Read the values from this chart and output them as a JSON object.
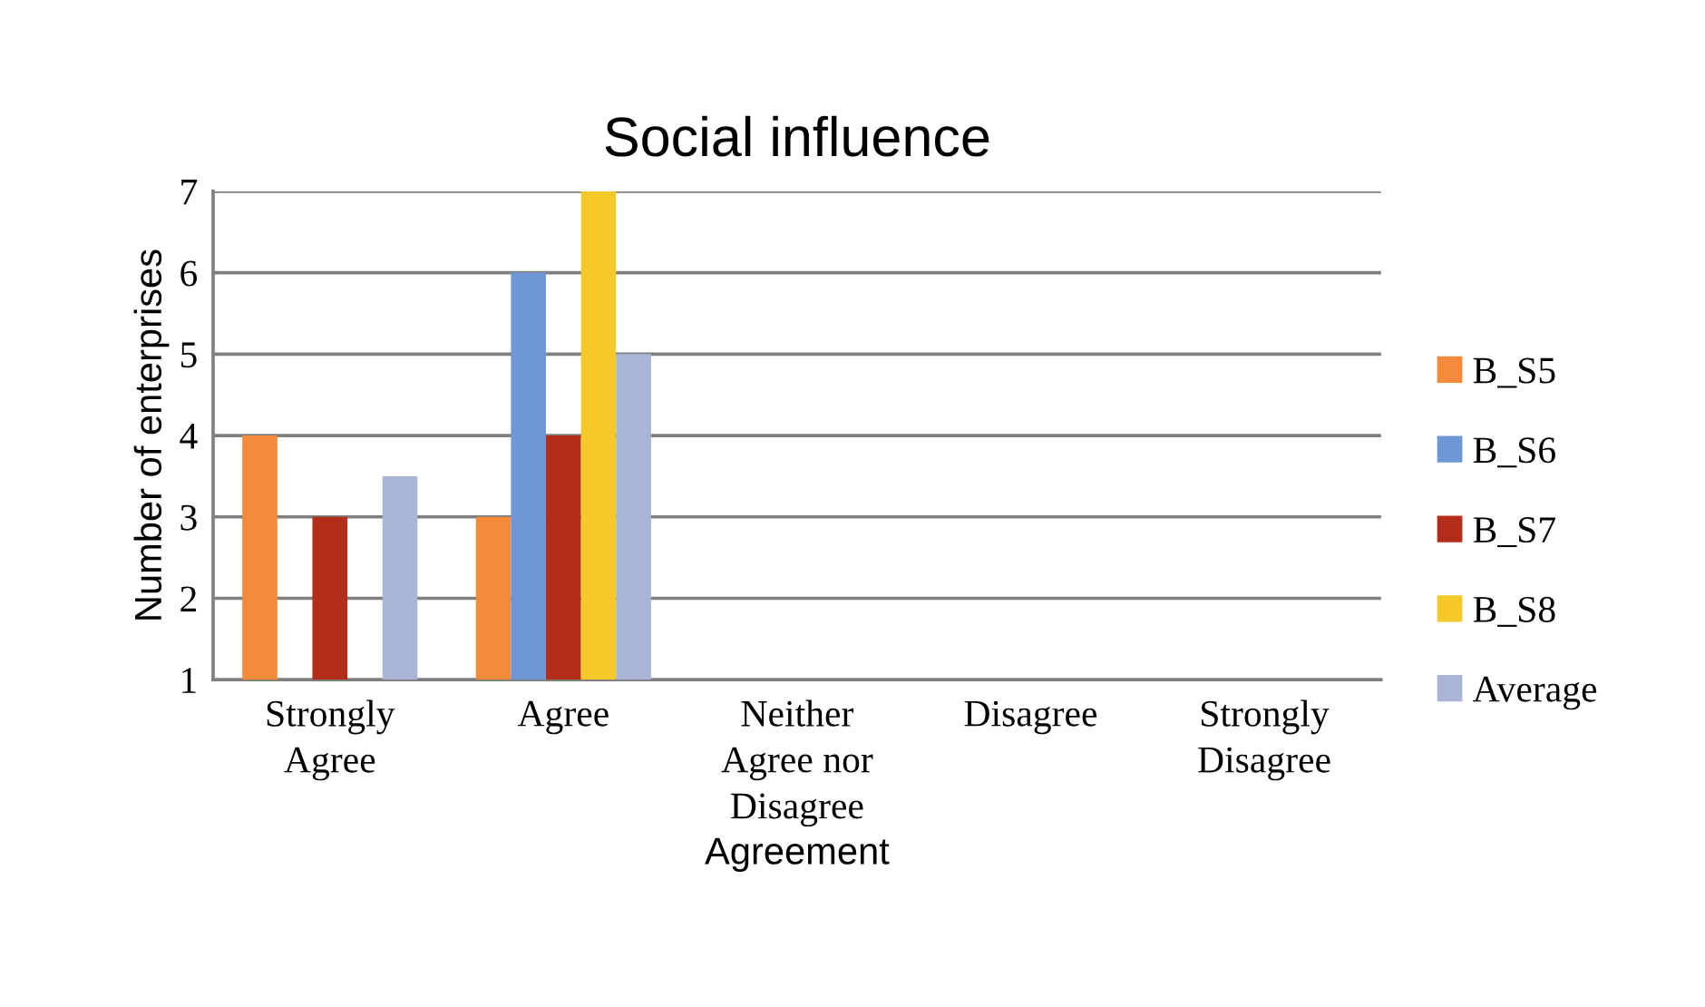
{
  "chart_data": {
    "type": "bar",
    "title": "Social influence",
    "xlabel": "Agreement",
    "ylabel": "Number of enterprises",
    "categories": [
      "Strongly\nAgree",
      "Agree",
      "Neither\nAgree nor\nDisagree",
      "Disagree",
      "Strongly\nDisagree"
    ],
    "series": [
      {
        "name": "B_S5",
        "color": "#f58a3a",
        "values": [
          4,
          3,
          null,
          null,
          null
        ]
      },
      {
        "name": "B_S6",
        "color": "#6f97d6",
        "values": [
          null,
          6,
          null,
          null,
          null
        ]
      },
      {
        "name": "B_S7",
        "color": "#b22d1a",
        "values": [
          3,
          4,
          null,
          null,
          null
        ]
      },
      {
        "name": "B_S8",
        "color": "#f5c92a",
        "values": [
          null,
          7,
          null,
          null,
          null
        ]
      },
      {
        "name": "Average",
        "color": "#a9b5d6",
        "values": [
          3.5,
          5,
          null,
          null,
          null
        ]
      }
    ],
    "ylim": [
      1,
      7
    ],
    "yticks": [
      1,
      2,
      3,
      4,
      5,
      6,
      7
    ],
    "grid": "y",
    "legend": "right"
  }
}
